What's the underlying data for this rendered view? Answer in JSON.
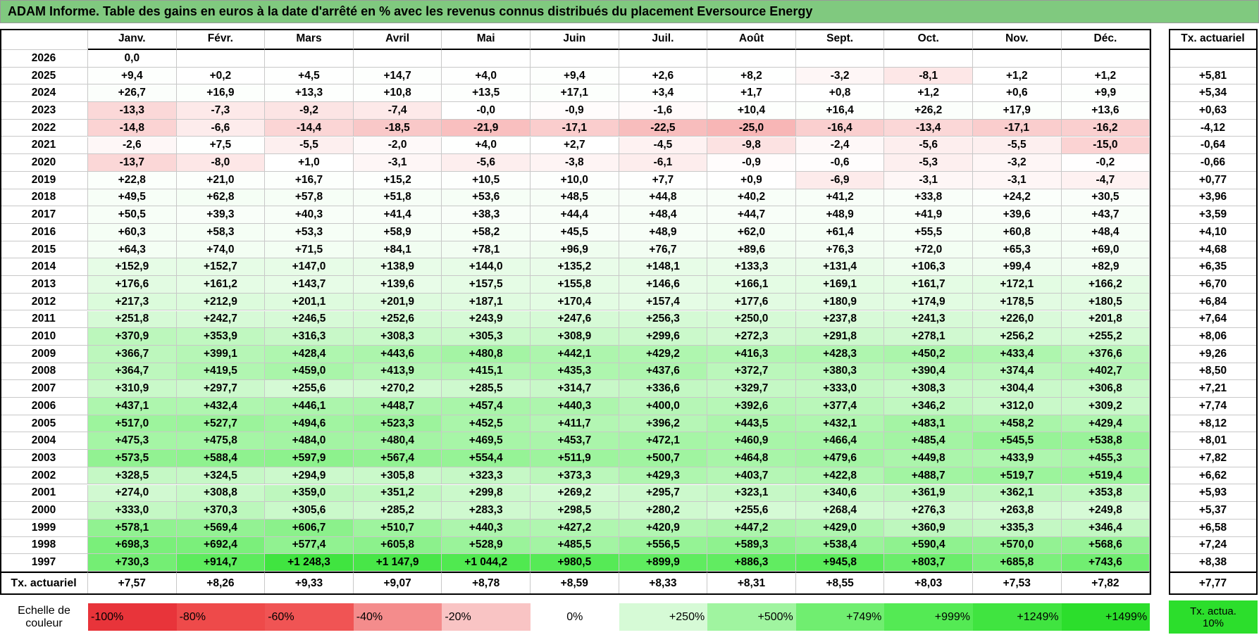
{
  "title": "ADAM Informe. Table des gains en euros à la date d'arrêté en % avec les revenus connus distribués du placement Eversource Energy",
  "header": {
    "months": [
      "Janv.",
      "Févr.",
      "Mars",
      "Avril",
      "Mai",
      "Juin",
      "Juil.",
      "Août",
      "Sept.",
      "Oct.",
      "Nov.",
      "Déc."
    ],
    "actuarial": "Tx. actuariel"
  },
  "rows": [
    {
      "year": "2026",
      "cells": [
        "0,0"
      ]
    },
    {
      "year": "2025",
      "cells": [
        "+9,4",
        "+0,2",
        "+4,5",
        "+14,7",
        "+4,0",
        "+9,4",
        "+2,6",
        "+8,2",
        "-3,2",
        "-8,1",
        "+1,2",
        "+1,2"
      ],
      "actuarial": "+5,81"
    },
    {
      "year": "2024",
      "cells": [
        "+26,7",
        "+16,9",
        "+13,3",
        "+10,8",
        "+13,5",
        "+17,1",
        "+3,4",
        "+1,7",
        "+0,8",
        "+1,2",
        "+0,6",
        "+9,9"
      ],
      "actuarial": "+5,34"
    },
    {
      "year": "2023",
      "cells": [
        "-13,3",
        "-7,3",
        "-9,2",
        "-7,4",
        "-0,0",
        "-0,9",
        "-1,6",
        "+10,4",
        "+16,4",
        "+26,2",
        "+17,9",
        "+13,6"
      ],
      "actuarial": "+0,63"
    },
    {
      "year": "2022",
      "cells": [
        "-14,8",
        "-6,6",
        "-14,4",
        "-18,5",
        "-21,9",
        "-17,1",
        "-22,5",
        "-25,0",
        "-16,4",
        "-13,4",
        "-17,1",
        "-16,2"
      ],
      "actuarial": "-4,12"
    },
    {
      "year": "2021",
      "cells": [
        "-2,6",
        "+7,5",
        "-5,5",
        "-2,0",
        "+4,0",
        "+2,7",
        "-4,5",
        "-9,8",
        "-2,4",
        "-5,6",
        "-5,5",
        "-15,0"
      ],
      "actuarial": "-0,64"
    },
    {
      "year": "2020",
      "cells": [
        "-13,7",
        "-8,0",
        "+1,0",
        "-3,1",
        "-5,6",
        "-3,8",
        "-6,1",
        "-0,9",
        "-0,6",
        "-5,3",
        "-3,2",
        "-0,2"
      ],
      "actuarial": "-0,66"
    },
    {
      "year": "2019",
      "cells": [
        "+22,8",
        "+21,0",
        "+16,7",
        "+15,2",
        "+10,5",
        "+10,0",
        "+7,7",
        "+0,9",
        "-6,9",
        "-3,1",
        "-3,1",
        "-4,7"
      ],
      "actuarial": "+0,77"
    },
    {
      "year": "2018",
      "cells": [
        "+49,5",
        "+62,8",
        "+57,8",
        "+51,8",
        "+53,6",
        "+48,5",
        "+44,8",
        "+40,2",
        "+41,2",
        "+33,8",
        "+24,2",
        "+30,5"
      ],
      "actuarial": "+3,96"
    },
    {
      "year": "2017",
      "cells": [
        "+50,5",
        "+39,3",
        "+40,3",
        "+41,4",
        "+38,3",
        "+44,4",
        "+48,4",
        "+44,7",
        "+48,9",
        "+41,9",
        "+39,6",
        "+43,7"
      ],
      "actuarial": "+3,59"
    },
    {
      "year": "2016",
      "cells": [
        "+60,3",
        "+58,3",
        "+53,3",
        "+58,9",
        "+58,2",
        "+45,5",
        "+48,9",
        "+62,0",
        "+61,4",
        "+55,5",
        "+60,8",
        "+48,4"
      ],
      "actuarial": "+4,10"
    },
    {
      "year": "2015",
      "cells": [
        "+64,3",
        "+74,0",
        "+71,5",
        "+84,1",
        "+78,1",
        "+96,9",
        "+76,7",
        "+89,6",
        "+76,3",
        "+72,0",
        "+65,3",
        "+69,0"
      ],
      "actuarial": "+4,68"
    },
    {
      "year": "2014",
      "cells": [
        "+152,9",
        "+152,7",
        "+147,0",
        "+138,9",
        "+144,0",
        "+135,2",
        "+148,1",
        "+133,3",
        "+131,4",
        "+106,3",
        "+99,4",
        "+82,9"
      ],
      "actuarial": "+6,35"
    },
    {
      "year": "2013",
      "cells": [
        "+176,6",
        "+161,2",
        "+143,7",
        "+139,6",
        "+157,5",
        "+155,8",
        "+146,6",
        "+166,1",
        "+169,1",
        "+161,7",
        "+172,1",
        "+166,2"
      ],
      "actuarial": "+6,70"
    },
    {
      "year": "2012",
      "cells": [
        "+217,3",
        "+212,9",
        "+201,1",
        "+201,9",
        "+187,1",
        "+170,4",
        "+157,4",
        "+177,6",
        "+180,9",
        "+174,9",
        "+178,5",
        "+180,5"
      ],
      "actuarial": "+6,84"
    },
    {
      "year": "2011",
      "cells": [
        "+251,8",
        "+242,7",
        "+246,5",
        "+252,6",
        "+243,9",
        "+247,6",
        "+256,3",
        "+250,0",
        "+237,8",
        "+241,3",
        "+226,0",
        "+201,8"
      ],
      "actuarial": "+7,64"
    },
    {
      "year": "2010",
      "cells": [
        "+370,9",
        "+353,9",
        "+316,3",
        "+308,3",
        "+305,3",
        "+308,9",
        "+299,6",
        "+272,3",
        "+291,8",
        "+278,1",
        "+256,2",
        "+255,2"
      ],
      "actuarial": "+8,06"
    },
    {
      "year": "2009",
      "cells": [
        "+366,7",
        "+399,1",
        "+428,4",
        "+443,6",
        "+480,8",
        "+442,1",
        "+429,2",
        "+416,3",
        "+428,3",
        "+450,2",
        "+433,4",
        "+376,6"
      ],
      "actuarial": "+9,26"
    },
    {
      "year": "2008",
      "cells": [
        "+364,7",
        "+419,5",
        "+459,0",
        "+413,9",
        "+415,1",
        "+435,3",
        "+437,6",
        "+372,7",
        "+380,3",
        "+390,4",
        "+374,4",
        "+402,7"
      ],
      "actuarial": "+8,50"
    },
    {
      "year": "2007",
      "cells": [
        "+310,9",
        "+297,7",
        "+255,6",
        "+270,2",
        "+285,5",
        "+314,7",
        "+336,6",
        "+329,7",
        "+333,0",
        "+308,3",
        "+304,4",
        "+306,8"
      ],
      "actuarial": "+7,21"
    },
    {
      "year": "2006",
      "cells": [
        "+437,1",
        "+432,4",
        "+446,1",
        "+448,7",
        "+457,4",
        "+440,3",
        "+400,0",
        "+392,6",
        "+377,4",
        "+346,2",
        "+312,0",
        "+309,2"
      ],
      "actuarial": "+7,74"
    },
    {
      "year": "2005",
      "cells": [
        "+517,0",
        "+527,7",
        "+494,6",
        "+523,3",
        "+452,5",
        "+411,7",
        "+396,2",
        "+443,5",
        "+432,1",
        "+483,1",
        "+458,2",
        "+429,4"
      ],
      "actuarial": "+8,12"
    },
    {
      "year": "2004",
      "cells": [
        "+475,3",
        "+475,8",
        "+484,0",
        "+480,4",
        "+469,5",
        "+453,7",
        "+472,1",
        "+460,9",
        "+466,4",
        "+485,4",
        "+545,5",
        "+538,8"
      ],
      "actuarial": "+8,01"
    },
    {
      "year": "2003",
      "cells": [
        "+573,5",
        "+588,4",
        "+597,9",
        "+567,4",
        "+554,4",
        "+511,9",
        "+500,7",
        "+464,8",
        "+479,6",
        "+449,8",
        "+433,9",
        "+455,3"
      ],
      "actuarial": "+7,82"
    },
    {
      "year": "2002",
      "cells": [
        "+328,5",
        "+324,5",
        "+294,9",
        "+305,8",
        "+323,3",
        "+373,3",
        "+429,3",
        "+403,7",
        "+422,8",
        "+488,7",
        "+519,7",
        "+519,4"
      ],
      "actuarial": "+6,62"
    },
    {
      "year": "2001",
      "cells": [
        "+274,0",
        "+308,8",
        "+359,0",
        "+351,2",
        "+299,8",
        "+269,2",
        "+295,7",
        "+323,1",
        "+340,6",
        "+361,9",
        "+362,1",
        "+353,8"
      ],
      "actuarial": "+5,93"
    },
    {
      "year": "2000",
      "cells": [
        "+333,0",
        "+370,3",
        "+305,6",
        "+285,2",
        "+283,3",
        "+298,5",
        "+280,2",
        "+255,6",
        "+268,4",
        "+276,3",
        "+263,8",
        "+249,8"
      ],
      "actuarial": "+5,37"
    },
    {
      "year": "1999",
      "cells": [
        "+578,1",
        "+569,4",
        "+606,7",
        "+510,7",
        "+440,3",
        "+427,2",
        "+420,9",
        "+447,2",
        "+429,0",
        "+360,9",
        "+335,3",
        "+346,4"
      ],
      "actuarial": "+6,58"
    },
    {
      "year": "1998",
      "cells": [
        "+698,3",
        "+692,4",
        "+577,4",
        "+605,8",
        "+528,9",
        "+485,5",
        "+556,5",
        "+589,3",
        "+538,4",
        "+590,4",
        "+570,0",
        "+568,6"
      ],
      "actuarial": "+7,24"
    },
    {
      "year": "1997",
      "cells": [
        "+730,3",
        "+914,7",
        "+1 248,3",
        "+1 147,9",
        "+1 044,2",
        "+980,5",
        "+899,9",
        "+886,3",
        "+945,8",
        "+803,7",
        "+685,8",
        "+743,6"
      ],
      "actuarial": "+8,38"
    }
  ],
  "footer": {
    "label": "Tx. actuariel",
    "cells": [
      "+7,57",
      "+8,26",
      "+9,33",
      "+9,07",
      "+8,78",
      "+8,59",
      "+8,33",
      "+8,31",
      "+8,55",
      "+8,03",
      "+7,53",
      "+7,82"
    ],
    "actuarial": "+7,77"
  },
  "legend": {
    "label": "Echelle de couleur",
    "steps": [
      "-100%",
      "-80%",
      "-60%",
      "-40%",
      "-20%",
      "0%",
      "+250%",
      "+500%",
      "+749%",
      "+999%",
      "+1249%",
      "+1499%"
    ],
    "actuarial": "Tx. actua. 10%"
  }
}
